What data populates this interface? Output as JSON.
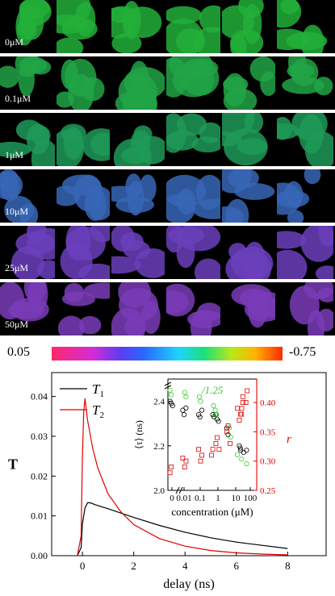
{
  "micrograph_rows": [
    {
      "label": "0μM",
      "color": "#22b03a"
    },
    {
      "label": "0.1μM",
      "color": "#21a446"
    },
    {
      "label": "1μM",
      "color": "#1f9a58"
    },
    {
      "label": "10μM",
      "color": "#3766b6"
    },
    {
      "label": "25μM",
      "color": "#6b3fbc"
    },
    {
      "label": "50μM",
      "color": "#7a3cb8"
    }
  ],
  "colorbar": {
    "left_label": "0.05",
    "right_label": "-0.75"
  },
  "chart_data": [
    {
      "type": "line",
      "xlabel": "delay (ns)",
      "ylabel": "T",
      "xlim": [
        -1.2,
        9.5
      ],
      "ylim": [
        0,
        0.046
      ],
      "xticks": [
        "0",
        "2",
        "4",
        "6",
        "8"
      ],
      "yticks": [
        "0.00",
        "0.01",
        "0.02",
        "0.03",
        "0.04"
      ],
      "legend": "top-left",
      "series": [
        {
          "name": "T1",
          "color": "#000000",
          "x": [
            -0.2,
            -0.05,
            0.0,
            0.1,
            0.2,
            0.3,
            0.5,
            1.0,
            2.0,
            3.0,
            4.0,
            5.0,
            6.0,
            7.0,
            8.0
          ],
          "y": [
            0.0,
            0.002,
            0.008,
            0.012,
            0.0133,
            0.0133,
            0.0128,
            0.0118,
            0.0096,
            0.0076,
            0.0059,
            0.0045,
            0.0034,
            0.0026,
            0.0018
          ]
        },
        {
          "name": "T2",
          "color": "#e00000",
          "x": [
            -0.2,
            -0.05,
            0.0,
            0.05,
            0.1,
            0.2,
            0.4,
            0.6,
            1.0,
            1.5,
            2.0,
            3.0,
            4.0,
            5.0,
            6.0,
            7.0,
            8.0
          ],
          "y": [
            0.0,
            0.005,
            0.025,
            0.036,
            0.0395,
            0.034,
            0.027,
            0.022,
            0.0155,
            0.011,
            0.0078,
            0.0043,
            0.0024,
            0.0013,
            0.0007,
            0.0004,
            0.0002
          ]
        }
      ]
    },
    {
      "type": "scatter",
      "xlabel": "concentration (μM)",
      "ylabel_left": "⟨τ⟩ (ns)",
      "ylabel_right": "r",
      "annotation": "/1.25",
      "xticks": [
        "0",
        "0.01",
        "0.1",
        "1",
        "10",
        "100"
      ],
      "yticks_left": [
        "2.0",
        "2.2",
        "2.4"
      ],
      "yticks_right": [
        "0.25",
        "0.30",
        "0.35",
        "0.40"
      ],
      "ylim_left": [
        2.0,
        2.5
      ],
      "ylim_right": [
        0.25,
        0.44
      ],
      "series": [
        {
          "name": "τ",
          "color": "#000000",
          "marker": "circle",
          "x": [
            0,
            0,
            0,
            0.01,
            0.01,
            0.01,
            0.1,
            0.1,
            0.1,
            0.5,
            0.5,
            1,
            1,
            1,
            5,
            5,
            20,
            20,
            30,
            40,
            50
          ],
          "y": [
            2.4,
            2.39,
            2.38,
            2.37,
            2.36,
            2.34,
            2.36,
            2.34,
            2.33,
            2.34,
            2.33,
            2.34,
            2.32,
            2.31,
            2.28,
            2.25,
            2.2,
            2.18,
            2.19,
            2.17,
            2.18
          ]
        },
        {
          "name": "τ/1.25",
          "color": "#33cc33",
          "marker": "circle",
          "x": [
            0,
            0,
            0.01,
            0.01,
            0.1,
            0.1,
            0.5,
            1,
            1,
            5,
            5,
            20,
            30,
            50
          ],
          "y": [
            2.45,
            2.43,
            2.44,
            2.42,
            2.42,
            2.4,
            2.38,
            2.36,
            2.34,
            2.28,
            2.24,
            2.16,
            2.14,
            2.12
          ]
        },
        {
          "name": "r",
          "color": "#e00000",
          "marker": "square",
          "axis": "right",
          "x": [
            0,
            0,
            0.01,
            0.01,
            0.01,
            0.1,
            0.1,
            0.1,
            0.5,
            0.5,
            1,
            1,
            1,
            5,
            5,
            5,
            20,
            20,
            20,
            30,
            30,
            40,
            40,
            50,
            50
          ],
          "y": [
            0.28,
            0.29,
            0.29,
            0.3,
            0.305,
            0.3,
            0.31,
            0.32,
            0.31,
            0.32,
            0.32,
            0.33,
            0.34,
            0.33,
            0.35,
            0.36,
            0.37,
            0.38,
            0.39,
            0.38,
            0.4,
            0.39,
            0.41,
            0.4,
            0.42
          ]
        }
      ]
    }
  ]
}
